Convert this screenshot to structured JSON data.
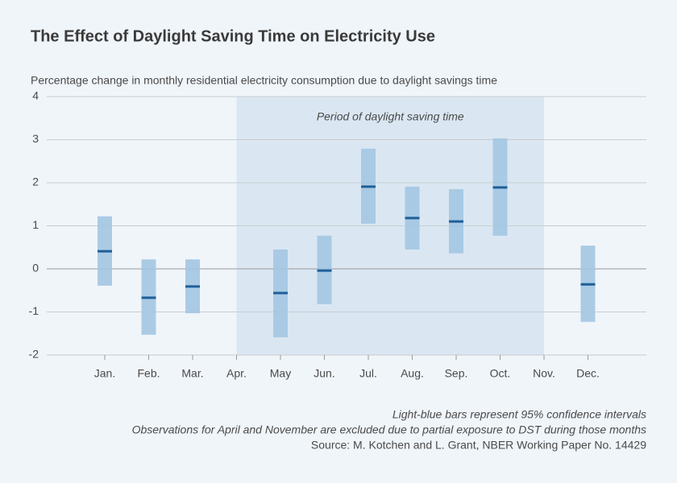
{
  "chart_data": {
    "type": "interval",
    "title": "The Effect of Daylight Saving Time on Electricity Use",
    "subtitle": "Percentage change in monthly residential electricity consumption due to daylight savings time",
    "annotation": "Period of daylight saving time",
    "shade_from": "Apr.",
    "shade_to": "Nov.",
    "categories": [
      "Jan.",
      "Feb.",
      "Mar.",
      "Apr.",
      "May",
      "Jun.",
      "Jul.",
      "Aug.",
      "Sep.",
      "Oct.",
      "Nov.",
      "Dec."
    ],
    "values": [
      0.41,
      -0.67,
      -0.41,
      null,
      -0.56,
      -0.04,
      1.91,
      1.18,
      1.1,
      1.89,
      null,
      -0.36
    ],
    "lower": [
      -0.39,
      -1.53,
      -1.03,
      null,
      -1.59,
      -0.82,
      1.05,
      0.45,
      0.36,
      0.77,
      null,
      -1.23
    ],
    "upper": [
      1.22,
      0.22,
      0.22,
      null,
      0.45,
      0.77,
      2.79,
      1.91,
      1.85,
      3.03,
      null,
      0.54
    ],
    "color": "#1f5f99",
    "interval_color": "#a3c6e2",
    "shade_color": "#dae7f2",
    "ylim": [
      -2,
      4
    ],
    "yticks": [
      -2,
      -1,
      0,
      1,
      2,
      3,
      4
    ],
    "grid": true,
    "notes": [
      "Light-blue bars represent 95% confidence intervals",
      "Observations for April and November are excluded due to partial exposure to DST during those months",
      "Source: M. Kotchen and L. Grant, NBER Working Paper No. 14429"
    ]
  }
}
